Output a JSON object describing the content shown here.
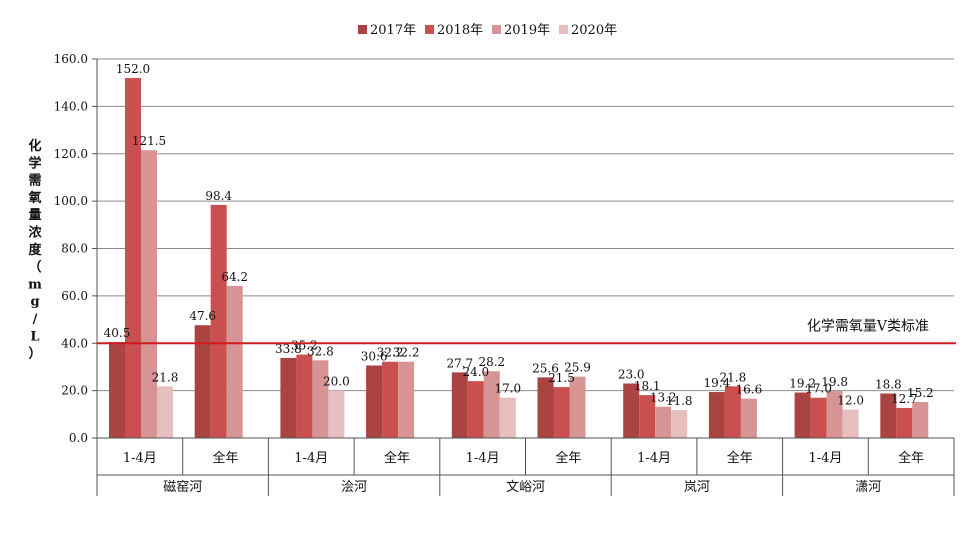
{
  "chart_data": {
    "type": "bar",
    "title": "",
    "ylabel": "化学需氧量浓度（mg/L）",
    "ylim": [
      0,
      160
    ],
    "yticks": [
      "0.0",
      "20.0",
      "40.0",
      "60.0",
      "80.0",
      "100.0",
      "120.0",
      "140.0",
      "160.0"
    ],
    "legend_position": "top-center",
    "grid": true,
    "series": [
      {
        "name": "2017年",
        "color": "#a94442"
      },
      {
        "name": "2018年",
        "color": "#c9504e"
      },
      {
        "name": "2019年",
        "color": "#d69594"
      },
      {
        "name": "2020年",
        "color": "#e6bfbe"
      }
    ],
    "groups": [
      {
        "river": "磁窑河",
        "periods": [
          {
            "label": "1-4月",
            "values": [
              40.5,
              152.0,
              121.5,
              21.8
            ]
          },
          {
            "label": "全年",
            "values": [
              47.6,
              98.4,
              64.2
            ]
          }
        ]
      },
      {
        "river": "浍河",
        "periods": [
          {
            "label": "1-4月",
            "values": [
              33.8,
              35.2,
              32.8,
              20.0
            ]
          },
          {
            "label": "全年",
            "values": [
              30.6,
              32.2,
              32.2
            ]
          }
        ]
      },
      {
        "river": "文峪河",
        "periods": [
          {
            "label": "1-4月",
            "values": [
              27.7,
              24.0,
              28.2,
              17.0
            ]
          },
          {
            "label": "全年",
            "values": [
              25.6,
              21.5,
              25.9
            ]
          }
        ]
      },
      {
        "river": "岚河",
        "periods": [
          {
            "label": "1-4月",
            "values": [
              23.0,
              18.1,
              13.2,
              11.8
            ]
          },
          {
            "label": "全年",
            "values": [
              19.4,
              21.8,
              16.6
            ]
          }
        ]
      },
      {
        "river": "潇河",
        "periods": [
          {
            "label": "1-4月",
            "values": [
              19.2,
              17.0,
              19.8,
              12.0
            ]
          },
          {
            "label": "全年",
            "values": [
              18.8,
              12.7,
              15.2
            ]
          }
        ]
      }
    ],
    "reference_line": {
      "value": 40,
      "label": "化学需氧量Ⅴ类标准",
      "color": "#d01c1c"
    }
  }
}
